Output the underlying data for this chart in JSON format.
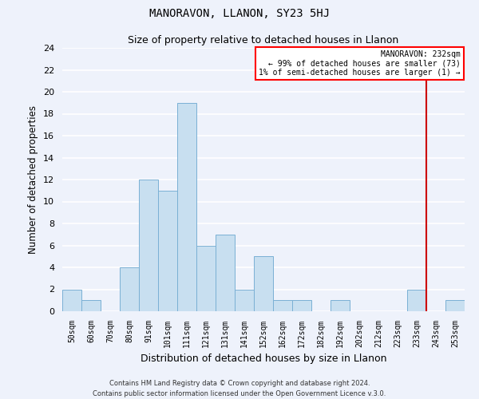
{
  "title": "MANORAVON, LLANON, SY23 5HJ",
  "subtitle": "Size of property relative to detached houses in Llanon",
  "xlabel": "Distribution of detached houses by size in Llanon",
  "ylabel": "Number of detached properties",
  "bar_color": "#c8dff0",
  "bar_edge_color": "#7ab0d4",
  "bin_labels": [
    "50sqm",
    "60sqm",
    "70sqm",
    "80sqm",
    "91sqm",
    "101sqm",
    "111sqm",
    "121sqm",
    "131sqm",
    "141sqm",
    "152sqm",
    "162sqm",
    "172sqm",
    "182sqm",
    "192sqm",
    "202sqm",
    "212sqm",
    "223sqm",
    "233sqm",
    "243sqm",
    "253sqm"
  ],
  "counts": [
    2,
    1,
    0,
    4,
    12,
    11,
    19,
    6,
    7,
    2,
    5,
    1,
    1,
    0,
    1,
    0,
    0,
    0,
    2,
    0,
    1
  ],
  "ylim": [
    0,
    24
  ],
  "yticks": [
    0,
    2,
    4,
    6,
    8,
    10,
    12,
    14,
    16,
    18,
    20,
    22,
    24
  ],
  "vline_color": "#cc0000",
  "legend_title": "MANORAVON: 232sqm",
  "legend_line1": "← 99% of detached houses are smaller (73)",
  "legend_line2": "1% of semi-detached houses are larger (1) →",
  "footer1": "Contains HM Land Registry data © Crown copyright and database right 2024.",
  "footer2": "Contains public sector information licensed under the Open Government Licence v.3.0.",
  "background_color": "#eef2fb",
  "grid_color": "#ffffff",
  "property_bin_index": 18
}
